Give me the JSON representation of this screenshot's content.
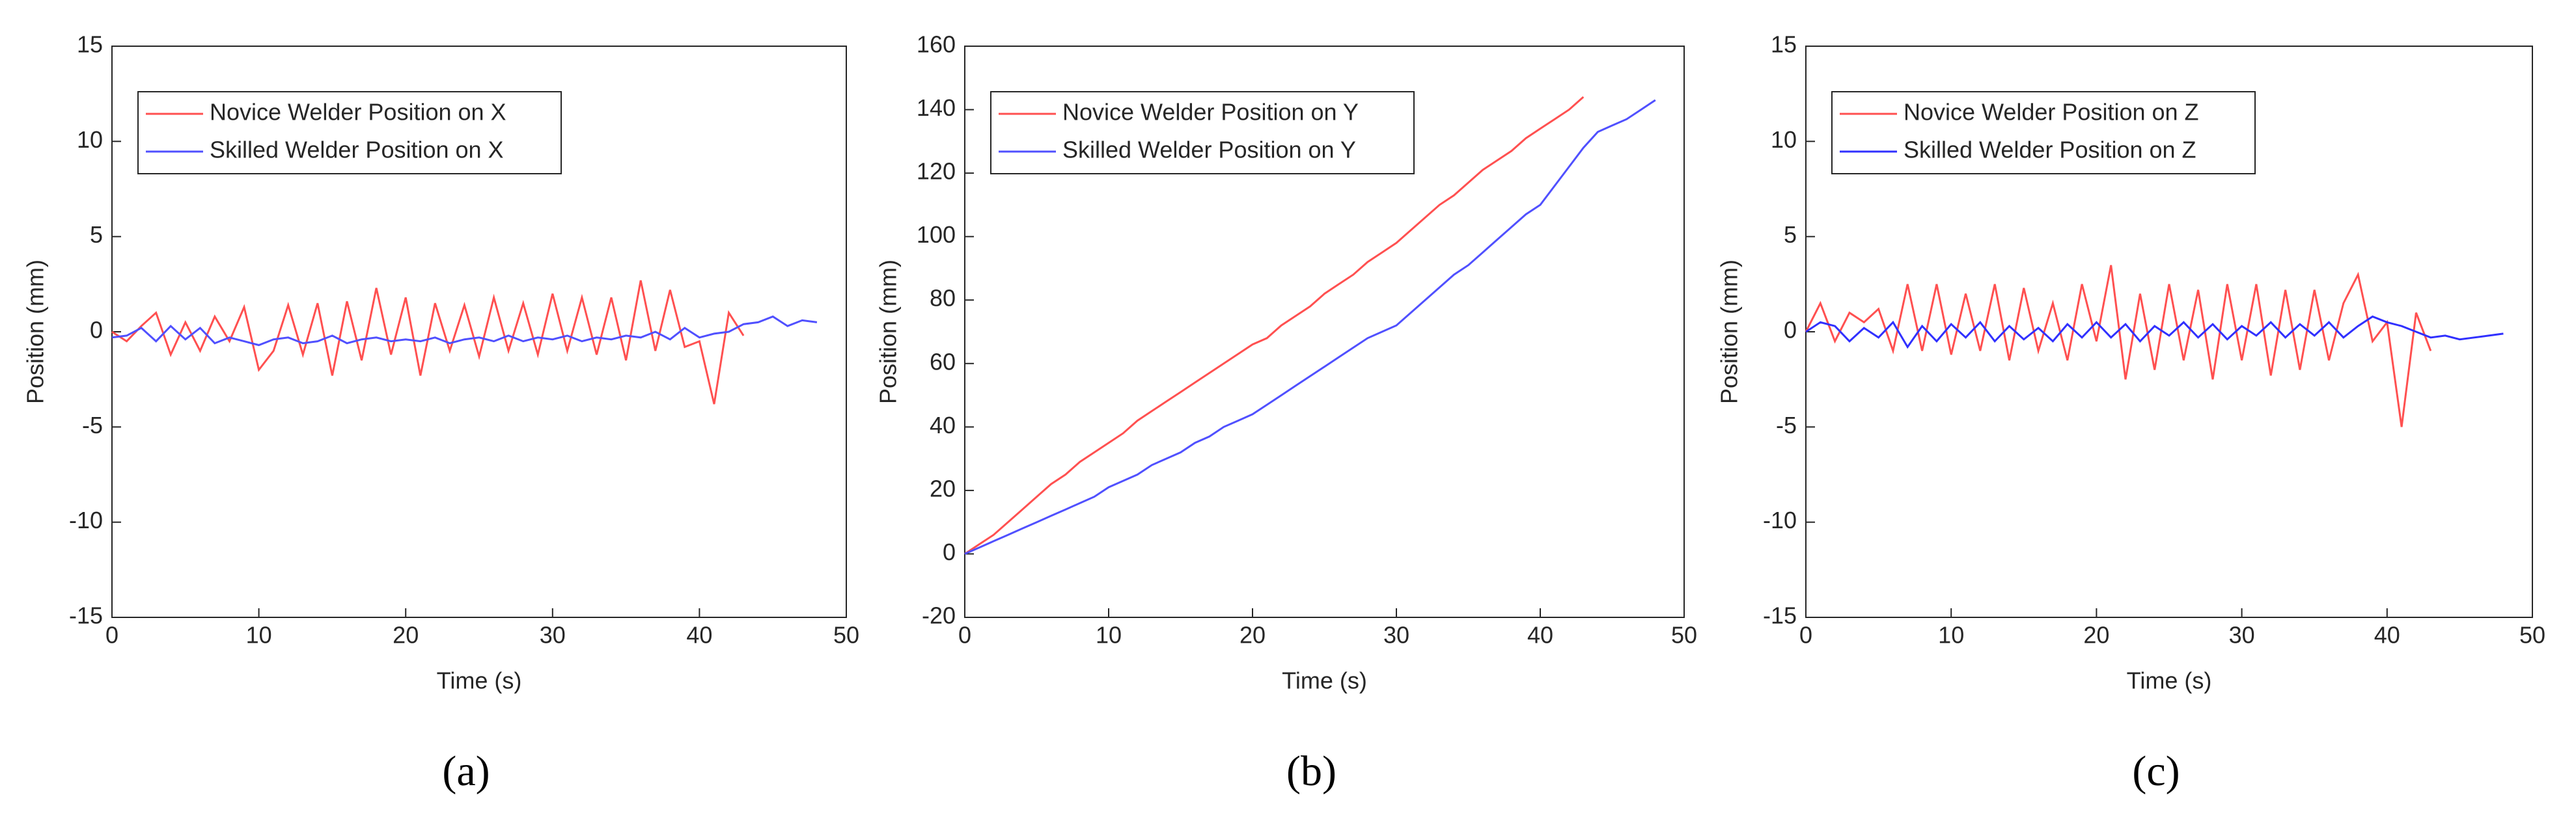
{
  "chart_data": [
    {
      "type": "line",
      "caption": "(a)",
      "xlabel": "Time (s)",
      "ylabel": "Position (mm)",
      "xlim": [
        0,
        50
      ],
      "xticks": [
        0,
        10,
        20,
        30,
        40,
        50
      ],
      "ylim": [
        -15,
        15
      ],
      "yticks": [
        -15,
        -10,
        -5,
        0,
        5,
        10,
        15
      ],
      "x": [
        0,
        1,
        2,
        3,
        4,
        5,
        6,
        7,
        8,
        9,
        10,
        11,
        12,
        13,
        14,
        15,
        16,
        17,
        18,
        19,
        20,
        21,
        22,
        23,
        24,
        25,
        26,
        27,
        28,
        29,
        30,
        31,
        32,
        33,
        34,
        35,
        36,
        37,
        38,
        39,
        40,
        41,
        42,
        43,
        44,
        45,
        46,
        47,
        48
      ],
      "series": [
        {
          "name": "Novice Welder Position on X",
          "color": "#ff5050",
          "values": [
            0,
            -0.5,
            0.3,
            1,
            -1.2,
            0.5,
            -1,
            0.8,
            -0.5,
            1.3,
            -2,
            -1,
            1.4,
            -1.2,
            1.5,
            -2.3,
            1.6,
            -1.5,
            2.3,
            -1.2,
            1.8,
            -2.3,
            1.5,
            -1,
            1.4,
            -1.3,
            1.8,
            -1,
            1.5,
            -1.2,
            2,
            -1,
            1.8,
            -1.2,
            1.8,
            -1.5,
            2.7,
            -1,
            2.2,
            -0.8,
            -0.5,
            -3.8,
            1,
            -0.2,
            null,
            null,
            null,
            null,
            null
          ]
        },
        {
          "name": "Skilled Welder Position on X",
          "color": "#5050ff",
          "values": [
            -0.3,
            -0.2,
            0.2,
            -0.5,
            0.3,
            -0.4,
            0.2,
            -0.6,
            -0.3,
            -0.5,
            -0.7,
            -0.4,
            -0.3,
            -0.6,
            -0.5,
            -0.2,
            -0.6,
            -0.4,
            -0.3,
            -0.5,
            -0.4,
            -0.5,
            -0.3,
            -0.6,
            -0.4,
            -0.3,
            -0.5,
            -0.2,
            -0.5,
            -0.3,
            -0.4,
            -0.2,
            -0.5,
            -0.3,
            -0.4,
            -0.2,
            -0.3,
            0,
            -0.4,
            0.2,
            -0.3,
            -0.1,
            0,
            0.4,
            0.5,
            0.8,
            0.3,
            0.6,
            0.5
          ]
        }
      ]
    },
    {
      "type": "line",
      "caption": "(b)",
      "xlabel": "Time (s)",
      "ylabel": "Position (mm)",
      "xlim": [
        0,
        50
      ],
      "xticks": [
        0,
        10,
        20,
        30,
        40,
        50
      ],
      "ylim": [
        -20,
        160
      ],
      "yticks": [
        -20,
        0,
        20,
        40,
        60,
        80,
        100,
        120,
        140,
        160
      ],
      "x": [
        0,
        1,
        2,
        3,
        4,
        5,
        6,
        7,
        8,
        9,
        10,
        11,
        12,
        13,
        14,
        15,
        16,
        17,
        18,
        19,
        20,
        21,
        22,
        23,
        24,
        25,
        26,
        27,
        28,
        29,
        30,
        31,
        32,
        33,
        34,
        35,
        36,
        37,
        38,
        39,
        40,
        41,
        42,
        43,
        44,
        45,
        46,
        47,
        48
      ],
      "series": [
        {
          "name": "Novice Welder Position on Y",
          "color": "#ff5050",
          "values": [
            0,
            3,
            6,
            10,
            14,
            18,
            22,
            25,
            29,
            32,
            35,
            38,
            42,
            45,
            48,
            51,
            54,
            57,
            60,
            63,
            66,
            68,
            72,
            75,
            78,
            82,
            85,
            88,
            92,
            95,
            98,
            102,
            106,
            110,
            113,
            117,
            121,
            124,
            127,
            131,
            134,
            137,
            140,
            144,
            null,
            null,
            null,
            null,
            null
          ]
        },
        {
          "name": "Skilled Welder Position on Y",
          "color": "#5050ff",
          "values": [
            0,
            2,
            4,
            6,
            8,
            10,
            12,
            14,
            16,
            18,
            21,
            23,
            25,
            28,
            30,
            32,
            35,
            37,
            40,
            42,
            44,
            47,
            50,
            53,
            56,
            59,
            62,
            65,
            68,
            70,
            72,
            76,
            80,
            84,
            88,
            91,
            95,
            99,
            103,
            107,
            110,
            116,
            122,
            128,
            133,
            135,
            137,
            140,
            143
          ]
        }
      ]
    },
    {
      "type": "line",
      "caption": "(c)",
      "xlabel": "Time (s)",
      "ylabel": "Position (mm)",
      "xlim": [
        0,
        50
      ],
      "xticks": [
        0,
        10,
        20,
        30,
        40,
        50
      ],
      "ylim": [
        -15,
        15
      ],
      "yticks": [
        -15,
        -10,
        -5,
        0,
        5,
        10,
        15
      ],
      "x": [
        0,
        1,
        2,
        3,
        4,
        5,
        6,
        7,
        8,
        9,
        10,
        11,
        12,
        13,
        14,
        15,
        16,
        17,
        18,
        19,
        20,
        21,
        22,
        23,
        24,
        25,
        26,
        27,
        28,
        29,
        30,
        31,
        32,
        33,
        34,
        35,
        36,
        37,
        38,
        39,
        40,
        41,
        42,
        43,
        44,
        45,
        46,
        47,
        48
      ],
      "series": [
        {
          "name": "Novice Welder Position on Z",
          "color": "#ff5050",
          "values": [
            0,
            1.5,
            -0.5,
            1,
            0.5,
            1.2,
            -1,
            2.5,
            -1,
            2.5,
            -1.2,
            2,
            -1,
            2.5,
            -1.5,
            2.3,
            -1,
            1.5,
            -1.5,
            2.5,
            -0.5,
            3.5,
            -2.5,
            2,
            -2,
            2.5,
            -1.5,
            2.2,
            -2.5,
            2.5,
            -1.5,
            2.5,
            -2.3,
            2.2,
            -2,
            2.2,
            -1.5,
            1.5,
            3,
            -0.5,
            0.5,
            -5,
            1,
            -1,
            null,
            null,
            null,
            null,
            null
          ]
        },
        {
          "name": "Skilled Welder Position on Z",
          "color": "#3030ff",
          "values": [
            0,
            0.5,
            0.3,
            -0.5,
            0.2,
            -0.3,
            0.5,
            -0.8,
            0.3,
            -0.5,
            0.4,
            -0.3,
            0.5,
            -0.5,
            0.3,
            -0.4,
            0.2,
            -0.5,
            0.4,
            -0.3,
            0.5,
            -0.3,
            0.4,
            -0.5,
            0.3,
            -0.2,
            0.5,
            -0.3,
            0.4,
            -0.4,
            0.3,
            -0.2,
            0.5,
            -0.3,
            0.4,
            -0.2,
            0.5,
            -0.3,
            0.3,
            0.8,
            0.5,
            0.3,
            0,
            -0.3,
            -0.2,
            -0.4,
            -0.3,
            -0.2,
            -0.1
          ]
        }
      ]
    }
  ]
}
